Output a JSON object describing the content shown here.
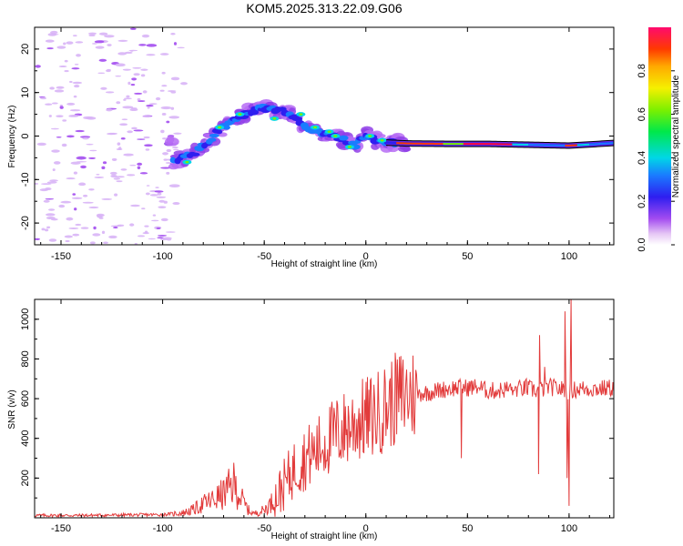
{
  "title": "KOM5.2025.313.22.09.G06",
  "chart_data": [
    {
      "type": "heatmap",
      "xlabel": "Height of straight line (km)",
      "ylabel": "Frequency (Hz)",
      "xlim": [
        -163,
        122
      ],
      "ylim": [
        -25,
        25
      ],
      "x_ticks": [
        -150,
        -100,
        -50,
        0,
        50,
        100
      ],
      "y_ticks": [
        -20,
        -10,
        0,
        10,
        20
      ],
      "colorbar": {
        "label": "Normalized spectral amplitude",
        "range": [
          0,
          1
        ],
        "ticks": [
          0.0,
          0.2,
          0.4,
          0.6,
          0.8
        ]
      },
      "ridge": {
        "x": [
          -95,
          -90,
          -85,
          -80,
          -75,
          -70,
          -65,
          -60,
          -55,
          -50,
          -45,
          -40,
          -35,
          -30,
          -25,
          -20,
          -15,
          -10,
          -5,
          0,
          5,
          10,
          15,
          20,
          40,
          60,
          80,
          100,
          122
        ],
        "freq": [
          -6,
          -5,
          -4,
          -2,
          0,
          2,
          3.5,
          5,
          6,
          6.5,
          6,
          5.5,
          4,
          2,
          1,
          0.5,
          0,
          -1,
          -2,
          0,
          -1,
          -1.5,
          -1.6,
          -1.7,
          -1.8,
          -1.8,
          -2,
          -2.2,
          -1.6
        ]
      }
    },
    {
      "type": "line",
      "xlabel": "Height of straight line (km)",
      "ylabel": "SNR (v/v)",
      "xlim": [
        -163,
        122
      ],
      "ylim": [
        0,
        1100
      ],
      "x_ticks": [
        -150,
        -100,
        -50,
        0,
        50,
        100
      ],
      "y_ticks": [
        200,
        400,
        600,
        800,
        1000
      ],
      "series": [
        {
          "name": "SNR",
          "color": "#e23b3b",
          "x": [
            -163,
            -140,
            -120,
            -100,
            -90,
            -85,
            -80,
            -75,
            -70,
            -65,
            -62,
            -58,
            -55,
            -50,
            -45,
            -40,
            -35,
            -30,
            -25,
            -20,
            -15,
            -10,
            -5,
            0,
            5,
            10,
            15,
            20,
            25,
            30,
            35,
            40,
            45,
            50,
            55,
            60,
            65,
            70,
            75,
            80,
            85,
            90,
            95,
            100,
            105,
            110,
            115,
            122
          ],
          "y": [
            12,
            12,
            14,
            16,
            25,
            40,
            70,
            90,
            120,
            170,
            110,
            40,
            20,
            40,
            90,
            170,
            250,
            300,
            330,
            380,
            420,
            450,
            480,
            500,
            520,
            560,
            600,
            620,
            625,
            630,
            640,
            650,
            655,
            655,
            660,
            640,
            640,
            650,
            650,
            650,
            640,
            660,
            650,
            640,
            650,
            650,
            650,
            655
          ]
        }
      ],
      "spikes": [
        {
          "x": 47,
          "y": 300
        },
        {
          "x": 73,
          "y": 640
        },
        {
          "x": 79,
          "y": 700
        },
        {
          "x": 85,
          "y": 220
        },
        {
          "x": 85.5,
          "y": 920
        },
        {
          "x": 88,
          "y": 760
        },
        {
          "x": 98,
          "y": 1040
        },
        {
          "x": 99,
          "y": 200
        },
        {
          "x": 100,
          "y": 60
        },
        {
          "x": 101,
          "y": 1100
        }
      ]
    }
  ]
}
